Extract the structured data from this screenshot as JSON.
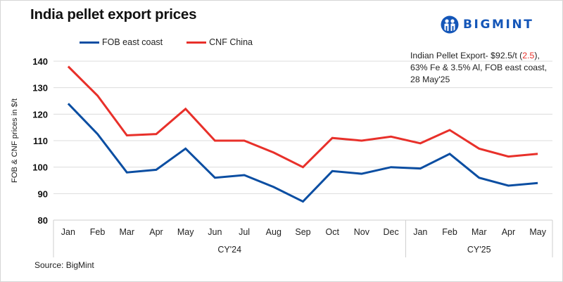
{
  "title": "India pellet export prices",
  "logo": {
    "text": "BIGMINT",
    "icon": "bigmint-people-icon",
    "color": "#1456b8"
  },
  "legend": [
    {
      "label": "FOB east coast",
      "color": "#0b4ea2"
    },
    {
      "label": "CNF China",
      "color": "#e8302a"
    }
  ],
  "note": {
    "line1_prefix": "Indian Pellet Export- $92.5/t (",
    "line1_change": "2.5",
    "line1_suffix": "),",
    "line2": "63% Fe & 3.5% Al, FOB east coast,",
    "line3": "28 May'25"
  },
  "source": "Source: BigMint",
  "chart_data": {
    "type": "line",
    "title": "India pellet export prices",
    "xlabel": "",
    "ylabel": "FOB & CNF prices in $/t",
    "ylim": [
      80,
      140
    ],
    "yticks": [
      80,
      90,
      100,
      110,
      120,
      130,
      140
    ],
    "grid": true,
    "legend_position": "top",
    "categories": [
      "Jan",
      "Feb",
      "Mar",
      "Apr",
      "May",
      "Jun",
      "Jul",
      "Aug",
      "Sep",
      "Oct",
      "Nov",
      "Dec",
      "Jan",
      "Feb",
      "Mar",
      "Apr",
      "May"
    ],
    "category_groups": [
      {
        "label": "CY'24",
        "start": 0,
        "end": 11
      },
      {
        "label": "CY'25",
        "start": 12,
        "end": 16
      }
    ],
    "series": [
      {
        "name": "FOB east coast",
        "color": "#0b4ea2",
        "values": [
          124,
          112.5,
          98,
          99,
          107,
          96,
          97,
          92.5,
          87,
          98.5,
          97.5,
          100,
          99.5,
          105,
          96,
          93,
          94
        ]
      },
      {
        "name": "CNF China",
        "color": "#e8302a",
        "values": [
          138,
          127,
          112,
          112.5,
          122,
          110,
          110,
          105.5,
          100,
          111,
          110,
          111.5,
          109,
          114,
          107,
          104,
          105
        ]
      }
    ],
    "annotations": [
      "Indian Pellet Export- $92.5/t (2.5), 63% Fe & 3.5% Al, FOB east coast, 28 May'25"
    ]
  }
}
